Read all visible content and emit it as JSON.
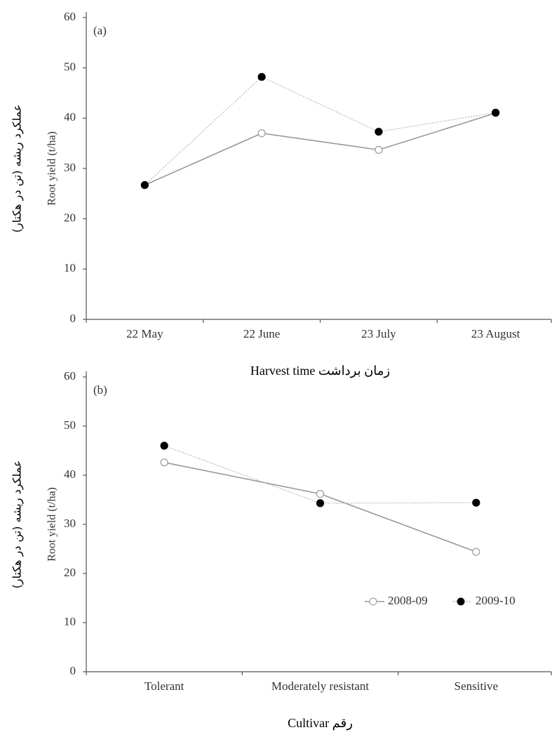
{
  "chart_data": [
    {
      "type": "line",
      "annotation": "(a)",
      "ylabel": [
        "عملکرد ریشه (تن در هکتار)",
        "Root yield (t/ha)"
      ],
      "xlabel": "Harvest time زمان برداشت",
      "categories": [
        "22 May",
        "22 June",
        "23 July",
        "23 August"
      ],
      "series": [
        {
          "color": "#999999",
          "marker_fill": "#ffffff",
          "dash": false,
          "values": [
            26.7,
            37.0,
            33.7,
            41.0
          ]
        },
        {
          "color": "#000000",
          "marker_fill": "#000000",
          "dash": true,
          "values": [
            26.7,
            48.2,
            37.3,
            41.1
          ]
        }
      ],
      "ylim": [
        0,
        60
      ],
      "yticks": [
        0,
        10,
        20,
        30,
        40,
        50,
        60
      ]
    },
    {
      "type": "line",
      "annotation": "(b)",
      "ylabel": [
        "عملکرد ریشه (تن در هکتار)",
        "Root yield (t/ha)"
      ],
      "xlabel": "Cultivar رقم",
      "categories": [
        "Tolerant",
        "Moderately resistant",
        "Sensitive"
      ],
      "series": [
        {
          "name": "2008-09",
          "color": "#999999",
          "marker_fill": "#ffffff",
          "dash": false,
          "values": [
            42.6,
            36.2,
            24.4
          ]
        },
        {
          "name": "2009-10",
          "color": "#000000",
          "marker_fill": "#000000",
          "dash": true,
          "values": [
            46.0,
            34.3,
            34.4
          ]
        }
      ],
      "ylim": [
        0,
        60
      ],
      "yticks": [
        0,
        10,
        20,
        30,
        40,
        50,
        60
      ],
      "legend": "lower right"
    }
  ]
}
